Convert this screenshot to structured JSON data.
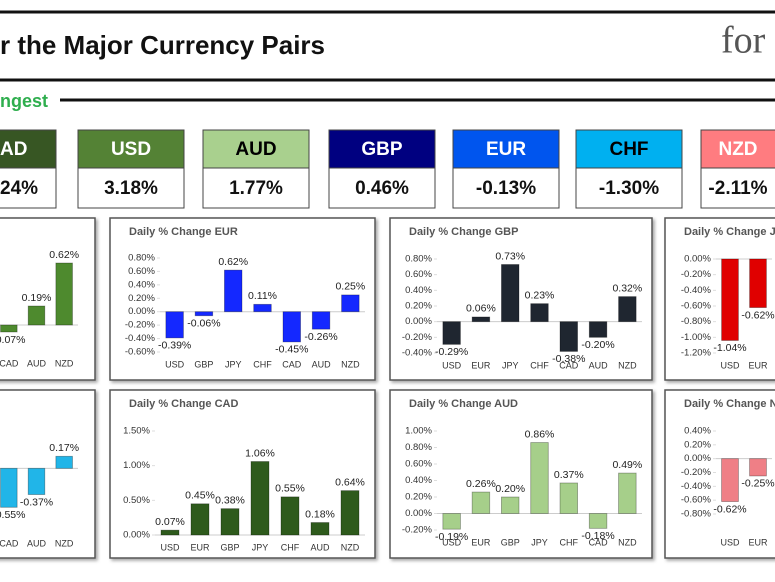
{
  "header": {
    "title": "r the Major Currency Pairs",
    "logo": "for",
    "subtitle": "ngest"
  },
  "strength": [
    {
      "label": "AD",
      "value": "24%",
      "color": "#375623",
      "text_color": "#ffffff"
    },
    {
      "label": "USD",
      "value": "3.18%",
      "color": "#548235",
      "text_color": "#ffffff"
    },
    {
      "label": "AUD",
      "value": "1.77%",
      "color": "#a9d08e",
      "text_color": "#000000"
    },
    {
      "label": "GBP",
      "value": "0.46%",
      "color": "#000080",
      "text_color": "#ffffff"
    },
    {
      "label": "EUR",
      "value": "-0.13%",
      "color": "#0055ee",
      "text_color": "#ffffff"
    },
    {
      "label": "CHF",
      "value": "-1.30%",
      "color": "#00b0f0",
      "text_color": "#000000"
    },
    {
      "label": "NZD",
      "value": "-2.11%",
      "color": "#ff7c80",
      "text_color": "#ffffff"
    }
  ],
  "chart_data": [
    {
      "type": "bar",
      "color": "#4e8a2e",
      "categories": [
        "CAD",
        "AUD",
        "NZD"
      ],
      "values": [
        -0.07,
        0.19,
        0.62
      ],
      "value_labels": [
        "-0.07%",
        "0.19%",
        "0.62%"
      ],
      "ylim": [
        -0.2,
        0.8
      ]
    },
    {
      "type": "bar",
      "title": "Daily % Change EUR",
      "color": "#1428ff",
      "categories": [
        "USD",
        "GBP",
        "JPY",
        "CHF",
        "CAD",
        "AUD",
        "NZD"
      ],
      "values": [
        -0.39,
        -0.06,
        0.62,
        0.11,
        -0.45,
        -0.26,
        0.25
      ],
      "value_labels": [
        "-0.39%",
        "-0.06%",
        "0.62%",
        "0.11%",
        "-0.45%",
        "-0.26%",
        "0.25%"
      ],
      "ylim": [
        -0.6,
        0.8
      ],
      "yticks": [
        {
          "value": 0.8,
          "label": "0.80%"
        },
        {
          "value": 0.6,
          "label": "0.60%"
        },
        {
          "value": 0.4,
          "label": "0.40%"
        },
        {
          "value": 0.2,
          "label": "0.20%"
        },
        {
          "value": 0,
          "label": "0.00%"
        },
        {
          "value": -0.2,
          "label": "-0.20%"
        },
        {
          "value": -0.4,
          "label": "-0.40%"
        },
        {
          "value": -0.6,
          "label": "-0.60%"
        }
      ]
    },
    {
      "type": "bar",
      "title": "Daily % Change GBP",
      "color": "#1f2630",
      "categories": [
        "USD",
        "EUR",
        "JPY",
        "CHF",
        "CAD",
        "AUD",
        "NZD"
      ],
      "values": [
        -0.29,
        0.06,
        0.73,
        0.23,
        -0.38,
        -0.2,
        0.32
      ],
      "value_labels": [
        "-0.29%",
        "0.06%",
        "0.73%",
        "0.23%",
        "-0.38%",
        "-0.20%",
        "0.32%"
      ],
      "ylim": [
        -0.4,
        0.8
      ],
      "yticks": [
        {
          "value": 0.8,
          "label": "0.80%"
        },
        {
          "value": 0.6,
          "label": "0.60%"
        },
        {
          "value": 0.4,
          "label": "0.40%"
        },
        {
          "value": 0.2,
          "label": "0.20%"
        },
        {
          "value": 0,
          "label": "0.00%"
        },
        {
          "value": -0.2,
          "label": "-0.20%"
        },
        {
          "value": -0.4,
          "label": "-0.40%"
        }
      ]
    },
    {
      "type": "bar",
      "title": "Daily % Change J",
      "color": "#e00000",
      "categories": [
        "USD",
        "EUR"
      ],
      "values": [
        -1.04,
        -0.62
      ],
      "value_labels": [
        "-1.04%",
        "-0.62%"
      ],
      "ylim": [
        -1.2,
        0
      ],
      "yticks": [
        {
          "value": 0,
          "label": "0.00%"
        },
        {
          "value": -0.2,
          "label": "-0.20%"
        },
        {
          "value": -0.4,
          "label": "-0.40%"
        },
        {
          "value": -0.6,
          "label": "-0.60%"
        },
        {
          "value": -0.8,
          "label": "-0.80%"
        },
        {
          "value": -1,
          "label": "-1.00%"
        },
        {
          "value": -1.2,
          "label": "-1.20%"
        }
      ]
    },
    {
      "type": "bar",
      "color": "#21b5e8",
      "categories": [
        "CAD",
        "AUD",
        "NZD"
      ],
      "values": [
        -0.55,
        -0.37,
        0.17
      ],
      "value_labels": [
        "-0.55%",
        "-0.37%",
        "0.17%"
      ],
      "ylim": [
        -0.8,
        0.4
      ]
    },
    {
      "type": "bar",
      "title": "Daily % Change CAD",
      "color": "#2e5a1c",
      "categories": [
        "USD",
        "EUR",
        "GBP",
        "JPY",
        "CHF",
        "AUD",
        "NZD"
      ],
      "values": [
        0.07,
        0.45,
        0.38,
        1.06,
        0.55,
        0.18,
        0.64
      ],
      "value_labels": [
        "0.07%",
        "0.45%",
        "0.38%",
        "1.06%",
        "0.55%",
        "0.18%",
        "0.64%"
      ],
      "ylim": [
        0,
        1.5
      ],
      "yticks": [
        {
          "value": 1.5,
          "label": "1.50%"
        },
        {
          "value": 1,
          "label": "1.00%"
        },
        {
          "value": 0.5,
          "label": "0.50%"
        },
        {
          "value": 0,
          "label": "0.00%"
        }
      ]
    },
    {
      "type": "bar",
      "title": "Daily % Change AUD",
      "color": "#a6cf8a",
      "categories": [
        "USD",
        "EUR",
        "GBP",
        "JPY",
        "CHF",
        "CAD",
        "NZD"
      ],
      "values": [
        -0.19,
        0.26,
        0.2,
        0.86,
        0.37,
        -0.18,
        0.49
      ],
      "value_labels": [
        "-0.19%",
        "0.26%",
        "0.20%",
        "0.86%",
        "0.37%",
        "-0.18%",
        "0.49%"
      ],
      "ylim": [
        -0.2,
        1
      ],
      "yticks": [
        {
          "value": 1,
          "label": "1.00%"
        },
        {
          "value": 0.8,
          "label": "0.80%"
        },
        {
          "value": 0.6,
          "label": "0.60%"
        },
        {
          "value": 0.4,
          "label": "0.40%"
        },
        {
          "value": 0.2,
          "label": "0.20%"
        },
        {
          "value": 0,
          "label": "0.00%"
        },
        {
          "value": -0.2,
          "label": "-0.20%"
        }
      ]
    },
    {
      "type": "bar",
      "title": "Daily % Change N",
      "color": "#ef7f86",
      "categories": [
        "USD",
        "EUR"
      ],
      "values": [
        -0.62,
        -0.25
      ],
      "value_labels": [
        "-0.62%",
        "-0.25%"
      ],
      "ylim": [
        -0.8,
        0.4
      ],
      "yticks": [
        {
          "value": 0.4,
          "label": "0.40%"
        },
        {
          "value": 0.2,
          "label": "0.20%"
        },
        {
          "value": 0,
          "label": "0.00%"
        },
        {
          "value": -0.2,
          "label": "-0.20%"
        },
        {
          "value": -0.4,
          "label": "-0.40%"
        },
        {
          "value": -0.6,
          "label": "-0.60%"
        },
        {
          "value": -0.8,
          "label": "-0.80%"
        }
      ]
    }
  ]
}
